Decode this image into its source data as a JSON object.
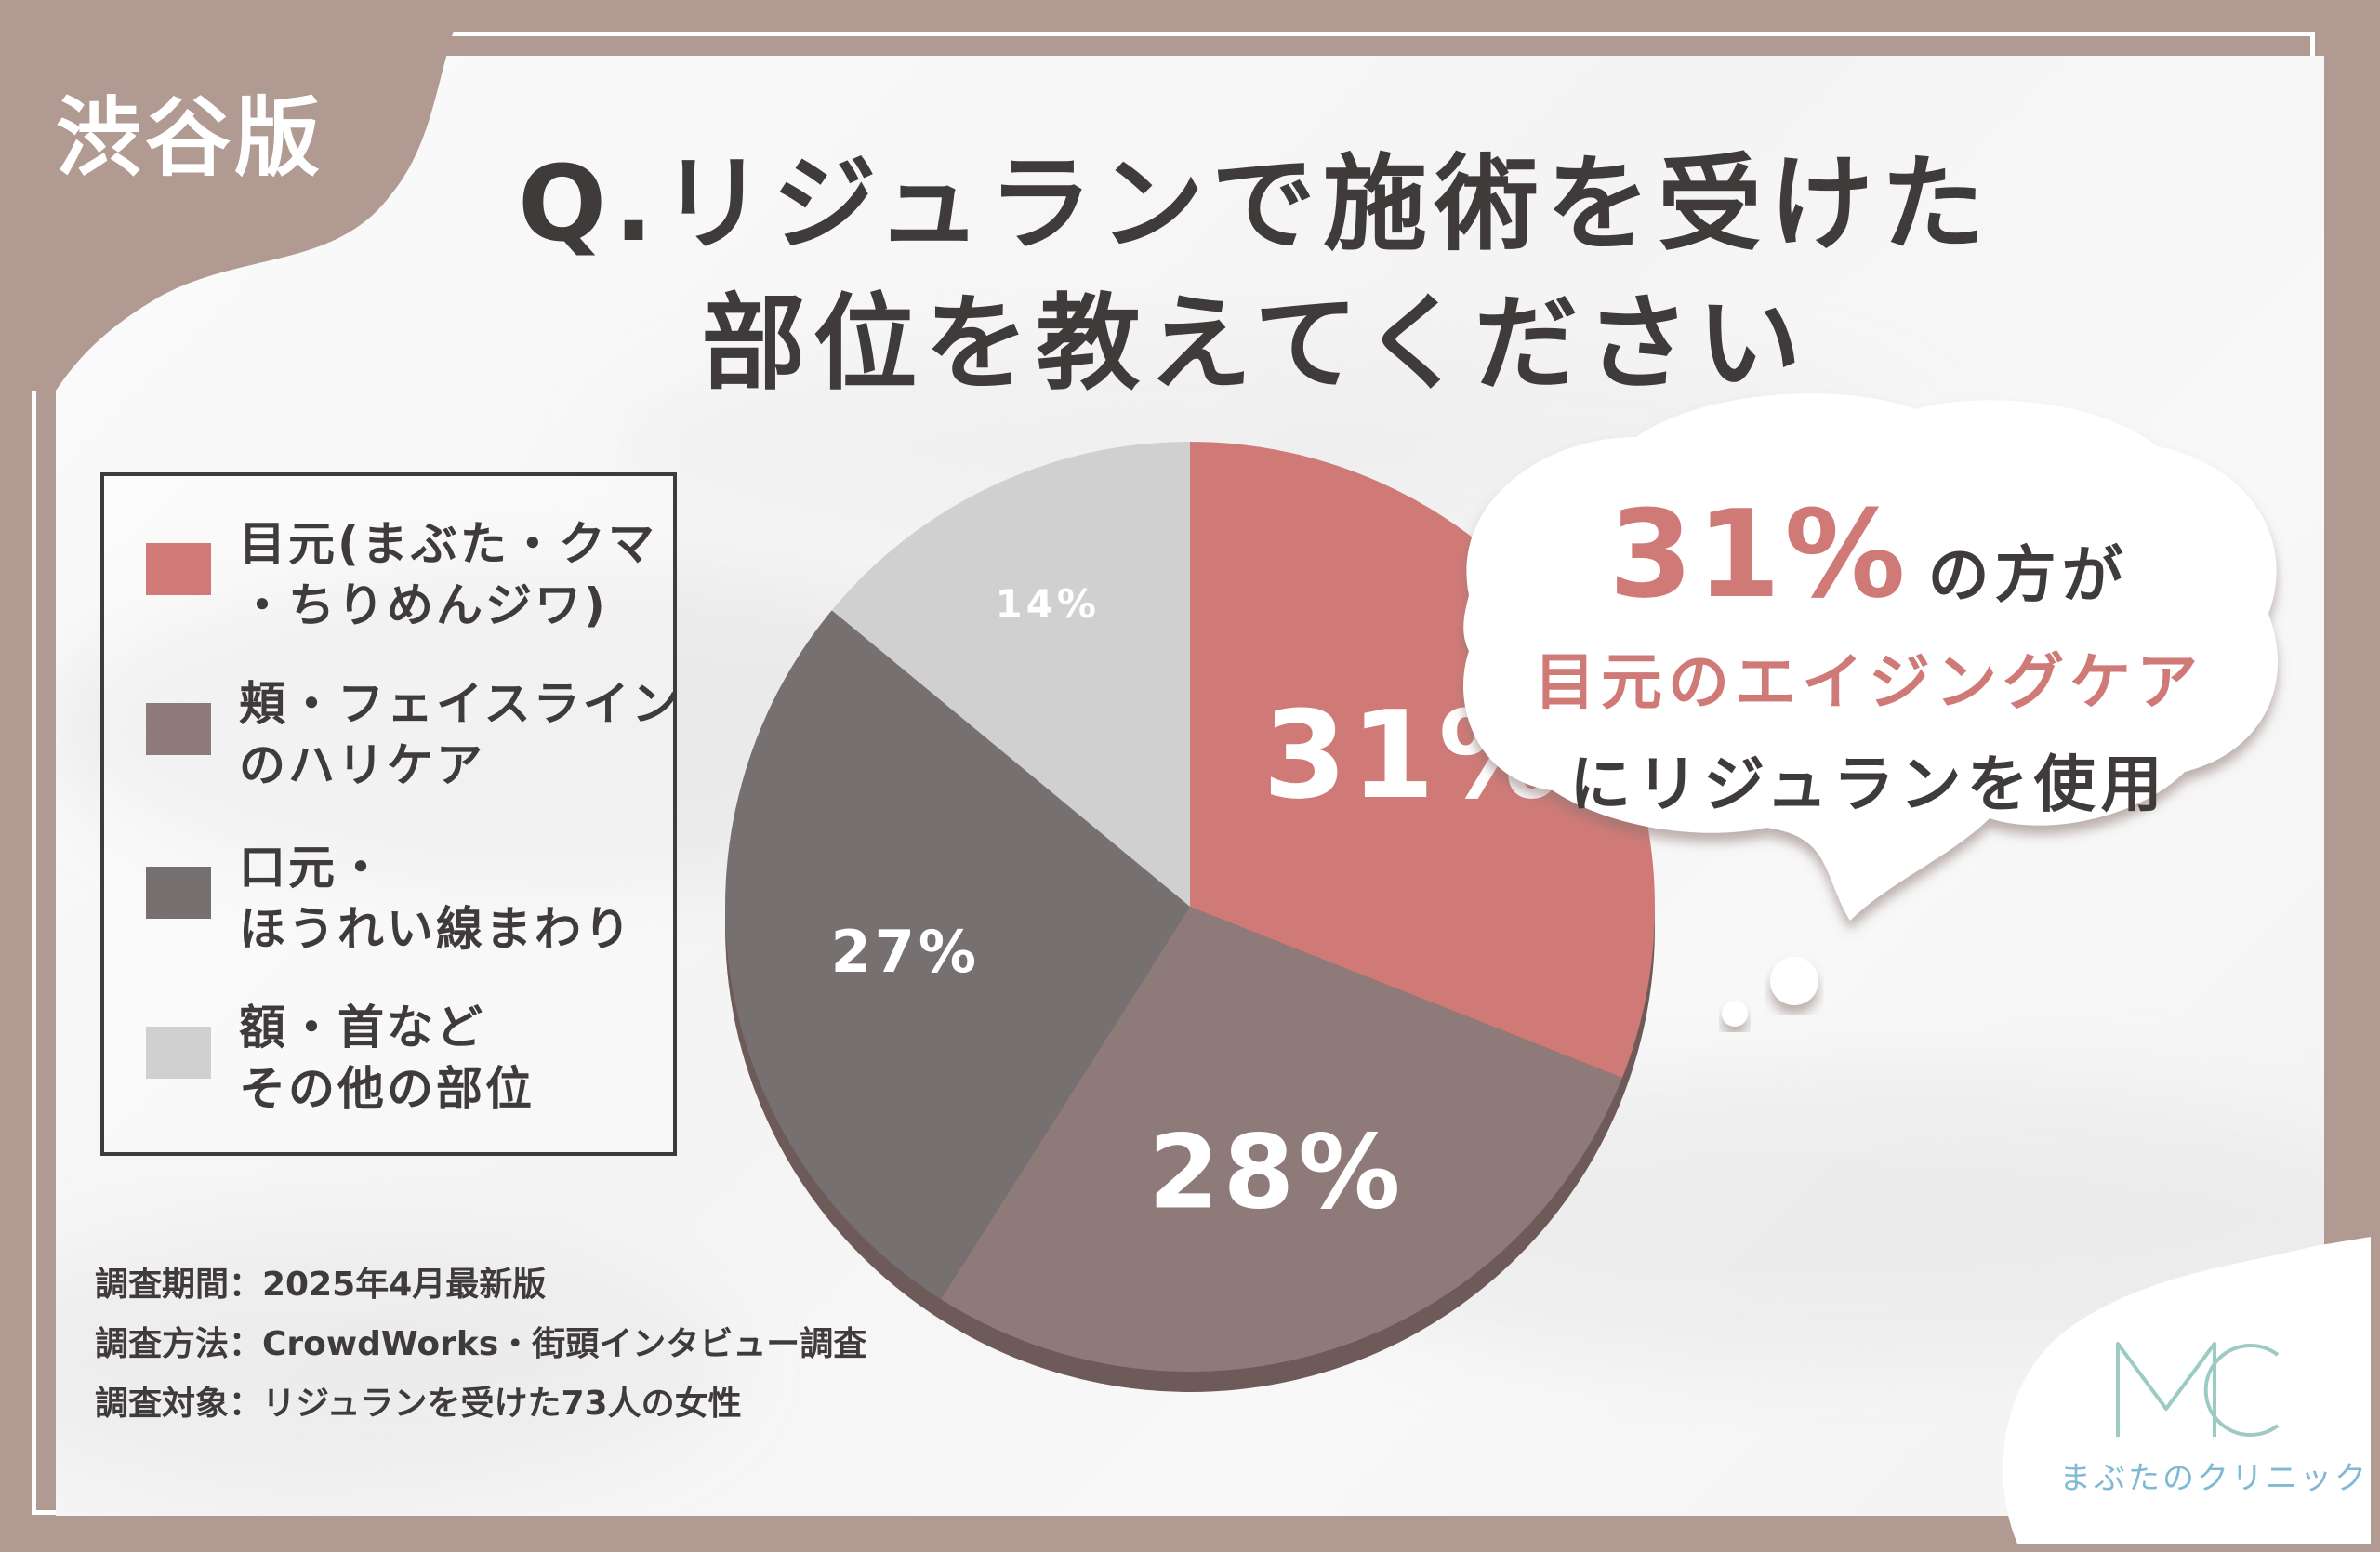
{
  "region_tag": "渋谷版",
  "title_lines": [
    "Q.リジュランで施術を受けた",
    "部位を教えてください"
  ],
  "legend": [
    {
      "lines": [
        "目元(まぶた・クマ",
        "・ちりめんジワ)"
      ],
      "color": "#d07a78"
    },
    {
      "lines": [
        "頬・フェイスライン",
        "のハリケア"
      ],
      "color": "#8e7a79"
    },
    {
      "lines": [
        "口元・",
        "ほうれい線まわり"
      ],
      "color": "#767070"
    },
    {
      "lines": [
        "額・首など",
        "その他の部位"
      ],
      "color": "#d0d0d0"
    }
  ],
  "chart_data": {
    "type": "pie",
    "slices": [
      {
        "label": "目元(まぶた・クマ・ちりめんジワ)",
        "value": 31,
        "display": "31%",
        "color": "#d07a78"
      },
      {
        "label": "頬・フェイスラインのハリケア",
        "value": 28,
        "display": "28%",
        "color": "#8e7a79"
      },
      {
        "label": "口元・ほうれい線まわり",
        "value": 27,
        "display": "27%",
        "color": "#767070"
      },
      {
        "label": "額・首などその他の部位",
        "value": 14,
        "display": "14%",
        "color": "#d0d0d0"
      }
    ],
    "title": "Q.リジュランで施術を受けた部位を教えてください"
  },
  "callout": {
    "pct": "31%",
    "suffix": "の方が",
    "line2": "目元のエイジングケア",
    "line3": "にリジュランを使用"
  },
  "survey": [
    "調査期間：2025年4月最新版",
    "調査方法：CrowdWorks・街頭インタビュー調査",
    "調査対象：リジュランを受けた73人の女性"
  ],
  "logo": {
    "mark": "MC",
    "text": "まぶたのクリニック"
  }
}
